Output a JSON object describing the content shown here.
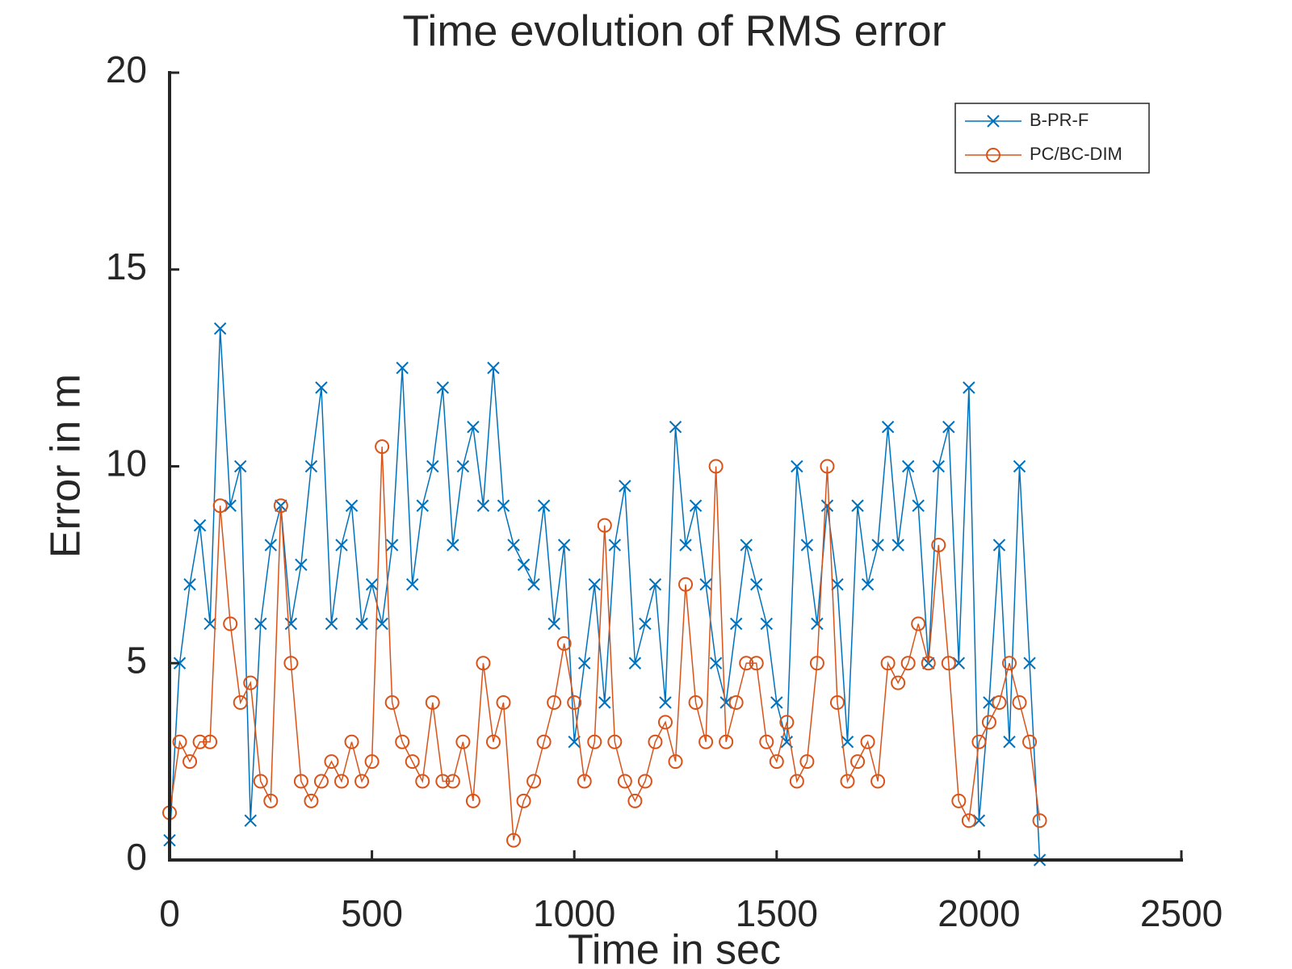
{
  "chart_data": {
    "type": "line",
    "title": "Time evolution of RMS error",
    "x_label": "Time in sec",
    "y_label": "Error in m",
    "x": [
      0,
      25,
      50,
      75,
      100,
      125,
      150,
      175,
      200,
      225,
      250,
      275,
      300,
      325,
      350,
      375,
      400,
      425,
      450,
      475,
      500,
      525,
      550,
      575,
      600,
      625,
      650,
      675,
      700,
      725,
      750,
      775,
      800,
      825,
      850,
      875,
      900,
      925,
      950,
      975,
      1000,
      1025,
      1050,
      1075,
      1100,
      1125,
      1150,
      1175,
      1200,
      1225,
      1250,
      1275,
      1300,
      1325,
      1350,
      1375,
      1400,
      1425,
      1450,
      1475,
      1500,
      1525,
      1550,
      1575,
      1600,
      1625,
      1650,
      1675,
      1700,
      1725,
      1750,
      1775,
      1800,
      1825,
      1850,
      1875,
      1900,
      1925,
      1950,
      1975,
      2000,
      2025,
      2050,
      2075,
      2100,
      2125,
      2150
    ],
    "series": [
      {
        "name": "B-PR-F",
        "color": "#0072bd",
        "marker": "x",
        "values": [
          0.5,
          5,
          7,
          8.5,
          6,
          13.5,
          9,
          10,
          1,
          6,
          8,
          9,
          6,
          7.5,
          10,
          12,
          6,
          8,
          9,
          6,
          7,
          6,
          8,
          12.5,
          7,
          9,
          10,
          12,
          8,
          10,
          11,
          9,
          12.5,
          9,
          8,
          7.5,
          7,
          9,
          6,
          8,
          3,
          5,
          7,
          4,
          8,
          9.5,
          5,
          6,
          7,
          4,
          11,
          8,
          9,
          7,
          5,
          4,
          6,
          8,
          7,
          6,
          4,
          3,
          10,
          8,
          6,
          9,
          7,
          3,
          9,
          7,
          8,
          11,
          8,
          10,
          9,
          5,
          10,
          11,
          5,
          12,
          1,
          4,
          8,
          3,
          10,
          5,
          0
        ]
      },
      {
        "name": "PC/BC-DIM",
        "color": "#d95319",
        "marker": "o",
        "values": [
          1.2,
          3,
          2.5,
          3,
          3,
          9,
          6,
          4,
          4.5,
          2,
          1.5,
          9,
          5,
          2,
          1.5,
          2,
          2.5,
          2,
          3,
          2,
          2.5,
          10.5,
          4,
          3,
          2.5,
          2,
          4,
          2,
          2,
          3,
          1.5,
          5,
          3,
          4,
          0.5,
          1.5,
          2,
          3,
          4,
          5.5,
          4,
          2,
          3,
          8.5,
          3,
          2,
          1.5,
          2,
          3,
          3.5,
          2.5,
          7,
          4,
          3,
          10,
          3,
          4,
          5,
          5,
          3,
          2.5,
          3.5,
          2,
          2.5,
          5,
          10,
          4,
          2,
          2.5,
          3,
          2,
          5,
          4.5,
          5,
          6,
          5,
          8,
          5,
          1.5,
          1,
          3,
          3.5,
          4,
          5,
          4,
          3,
          1
        ]
      }
    ],
    "xlim": [
      0,
      2500
    ],
    "xticks": [
      0,
      500,
      1000,
      1500,
      2000,
      2500
    ],
    "ylim": [
      0,
      20
    ],
    "yticks": [
      0,
      5,
      10,
      15,
      20
    ],
    "legend": "top-right",
    "grid": false
  }
}
